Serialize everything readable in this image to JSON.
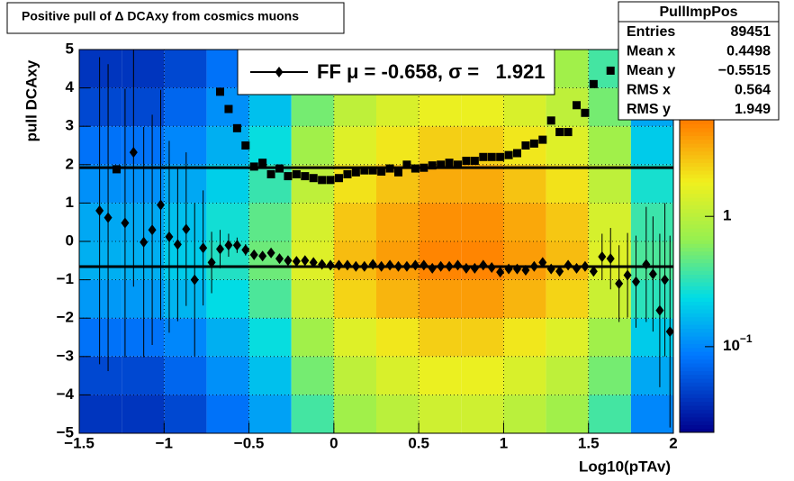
{
  "chart_data": {
    "type": "heatmap",
    "title": "Positive pull of Δ DCAxy from cosmics muons",
    "x_label": "Log10(pTAv)",
    "y_label": "pull DCAxy",
    "xlim": [
      -1.5,
      2
    ],
    "ylim": [
      -5,
      5
    ],
    "xticks": [
      {
        "value": -1.5,
        "label": "−1.5"
      },
      {
        "value": -1,
        "label": "−1"
      },
      {
        "value": -0.5,
        "label": "−0.5"
      },
      0,
      0.5,
      1,
      1.5,
      2
    ],
    "yticks": [
      {
        "value": -5,
        "label": "−5"
      },
      {
        "value": -4,
        "label": "−4"
      },
      {
        "value": -3,
        "label": "−3"
      },
      {
        "value": -2,
        "label": "−2"
      },
      {
        "value": -1,
        "label": "−1"
      },
      0,
      1,
      2,
      3,
      4,
      5
    ],
    "grid": true,
    "log_z": true,
    "zlim": [
      0.022,
      20
    ],
    "zticks": [
      {
        "value": 0.1,
        "label": "10^−1"
      },
      1
    ],
    "x_bins": [
      -1.5,
      -1.25,
      -1,
      -0.75,
      -0.5,
      -0.25,
      0,
      0.25,
      0.5,
      0.75,
      1,
      1.25,
      1.5,
      1.75,
      2
    ],
    "y_bins": [
      -5,
      -4,
      -3,
      -2,
      -1,
      0,
      1,
      2,
      3,
      4,
      5
    ],
    "z": [
      [
        0.04,
        0.04,
        0.05,
        0.08,
        0.13,
        0.38,
        0.75,
        1,
        1.25,
        1.25,
        1,
        0.75,
        0.38,
        0.1
      ],
      [
        0.05,
        0.05,
        0.07,
        0.11,
        0.18,
        0.53,
        1.05,
        1.4,
        1.75,
        1.75,
        1.4,
        1.05,
        0.53,
        0.14
      ],
      [
        0.08,
        0.08,
        0.1,
        0.15,
        0.25,
        0.75,
        1.5,
        2,
        2.5,
        2.5,
        2,
        1.5,
        0.75,
        0.2
      ],
      [
        0.12,
        0.12,
        0.16,
        0.24,
        0.4,
        1.2,
        2.4,
        3.2,
        4,
        4,
        3.2,
        2.4,
        1.2,
        0.32
      ],
      [
        0.15,
        0.15,
        0.2,
        0.3,
        0.5,
        1.5,
        3,
        4,
        5,
        5,
        4,
        3,
        1.5,
        0.4
      ],
      [
        0.14,
        0.14,
        0.18,
        0.27,
        0.45,
        1.35,
        2.7,
        3.6,
        4.5,
        4.5,
        3.6,
        2.7,
        1.35,
        0.36
      ],
      [
        0.11,
        0.11,
        0.14,
        0.21,
        0.35,
        1.05,
        2.1,
        2.8,
        3.5,
        3.5,
        2.8,
        2.1,
        1.05,
        0.28
      ],
      [
        0.08,
        0.08,
        0.1,
        0.15,
        0.25,
        0.75,
        1.5,
        2,
        2.5,
        2.5,
        2,
        1.5,
        0.75,
        0.2
      ],
      [
        0.05,
        0.05,
        0.07,
        0.11,
        0.18,
        0.53,
        1.05,
        1.4,
        1.75,
        1.75,
        1.4,
        1.05,
        0.53,
        0.14
      ],
      [
        0.04,
        0.04,
        0.05,
        0.08,
        0.13,
        0.38,
        0.75,
        1,
        1.25,
        1.25,
        1,
        0.75,
        0.38,
        0.1
      ]
    ],
    "series": [
      {
        "marker": "diamond",
        "color": "#000000",
        "x": [
          -1.38,
          -1.33,
          -1.23,
          -1.18,
          -1.12,
          -1.07,
          -1.02,
          -0.97,
          -0.92,
          -0.87,
          -0.82,
          -0.77,
          -0.72,
          -0.67,
          -0.62,
          -0.57,
          -0.52,
          -0.47,
          -0.42,
          -0.37,
          -0.32,
          -0.27,
          -0.22,
          -0.17,
          -0.12,
          -0.07,
          -0.02,
          0.03,
          0.08,
          0.13,
          0.18,
          0.23,
          0.28,
          0.33,
          0.38,
          0.43,
          0.48,
          0.53,
          0.58,
          0.63,
          0.68,
          0.73,
          0.78,
          0.83,
          0.88,
          0.93,
          0.98,
          1.03,
          1.08,
          1.13,
          1.18,
          1.23,
          1.28,
          1.33,
          1.38,
          1.43,
          1.48,
          1.53,
          1.58,
          1.63,
          1.68,
          1.73,
          1.78,
          1.84,
          1.88,
          1.92,
          1.95,
          1.98
        ],
        "values": [
          0.8,
          0.62,
          0.48,
          2.32,
          -0.02,
          0.3,
          0.95,
          0.12,
          -0.08,
          0.32,
          -1.0,
          -0.17,
          -0.55,
          -0.2,
          -0.1,
          -0.1,
          -0.22,
          -0.35,
          -0.38,
          -0.3,
          -0.45,
          -0.5,
          -0.52,
          -0.5,
          -0.55,
          -0.6,
          -0.62,
          -0.62,
          -0.62,
          -0.65,
          -0.65,
          -0.6,
          -0.65,
          -0.62,
          -0.65,
          -0.65,
          -0.62,
          -0.62,
          -0.7,
          -0.65,
          -0.65,
          -0.62,
          -0.7,
          -0.7,
          -0.62,
          -0.68,
          -0.8,
          -0.72,
          -0.72,
          -0.75,
          -0.65,
          -0.55,
          -0.72,
          -0.78,
          -0.62,
          -0.7,
          -0.65,
          -0.78,
          -0.4,
          -0.45,
          -1.1,
          -0.88,
          -1.05,
          -0.6,
          -0.85,
          -1.8,
          -1.0,
          -2.35
        ],
        "errors": [
          4,
          4,
          3.5,
          3.5,
          3,
          3,
          3,
          2.5,
          2,
          2,
          2,
          1.5,
          0.8,
          0.5,
          0.3,
          0.2,
          0.15,
          0.1,
          0.08,
          0.08,
          0.07,
          0.06,
          0.06,
          0.05,
          0.05,
          0.05,
          0.05,
          0.05,
          0.05,
          0.05,
          0.05,
          0.05,
          0.05,
          0.05,
          0.05,
          0.05,
          0.05,
          0.05,
          0.05,
          0.05,
          0.05,
          0.05,
          0.05,
          0.05,
          0.05,
          0.05,
          0.05,
          0.05,
          0.05,
          0.05,
          0.05,
          0.05,
          0.05,
          0.06,
          0.07,
          0.08,
          0.1,
          0.12,
          0.6,
          0.8,
          1,
          1.1,
          1.2,
          1.5,
          1.5,
          2,
          2,
          2.5
        ]
      },
      {
        "marker": "square",
        "color": "#000000",
        "x": [
          -1.28,
          -0.67,
          -0.62,
          -0.57,
          -0.52,
          -0.47,
          -0.42,
          -0.37,
          -0.32,
          -0.27,
          -0.22,
          -0.17,
          -0.12,
          -0.07,
          -0.02,
          0.03,
          0.08,
          0.13,
          0.18,
          0.23,
          0.28,
          0.33,
          0.38,
          0.43,
          0.48,
          0.53,
          0.58,
          0.63,
          0.68,
          0.73,
          0.78,
          0.83,
          0.88,
          0.93,
          0.98,
          1.03,
          1.08,
          1.13,
          1.18,
          1.23,
          1.28,
          1.33,
          1.38,
          1.43,
          1.48,
          1.53,
          1.63
        ],
        "values": [
          1.88,
          3.9,
          3.45,
          2.95,
          2.5,
          1.95,
          2.05,
          1.75,
          1.9,
          1.7,
          1.75,
          1.7,
          1.65,
          1.6,
          1.6,
          1.65,
          1.75,
          1.8,
          1.85,
          1.85,
          1.82,
          1.9,
          1.8,
          2.0,
          1.9,
          1.92,
          1.98,
          2.0,
          2.05,
          2.0,
          2.1,
          2.1,
          2.2,
          2.2,
          2.2,
          2.25,
          2.3,
          2.5,
          2.55,
          2.65,
          3.15,
          2.85,
          2.85,
          3.55,
          3.35,
          4.1,
          4.45
        ]
      }
    ],
    "fit_lines": [
      -0.658,
      1.921
    ],
    "legend": {
      "label": "FF μ = -0.658, σ =   1.921"
    },
    "stats": {
      "title": "PullImpPos",
      "rows": [
        {
          "label": "Entries",
          "value": "89451"
        },
        {
          "label": "Mean x",
          "value": "0.4498"
        },
        {
          "label": "Mean y",
          "value": "−0.5515"
        },
        {
          "label": "RMS x",
          "value": "0.564"
        },
        {
          "label": "RMS y",
          "value": "1.949"
        }
      ]
    }
  }
}
